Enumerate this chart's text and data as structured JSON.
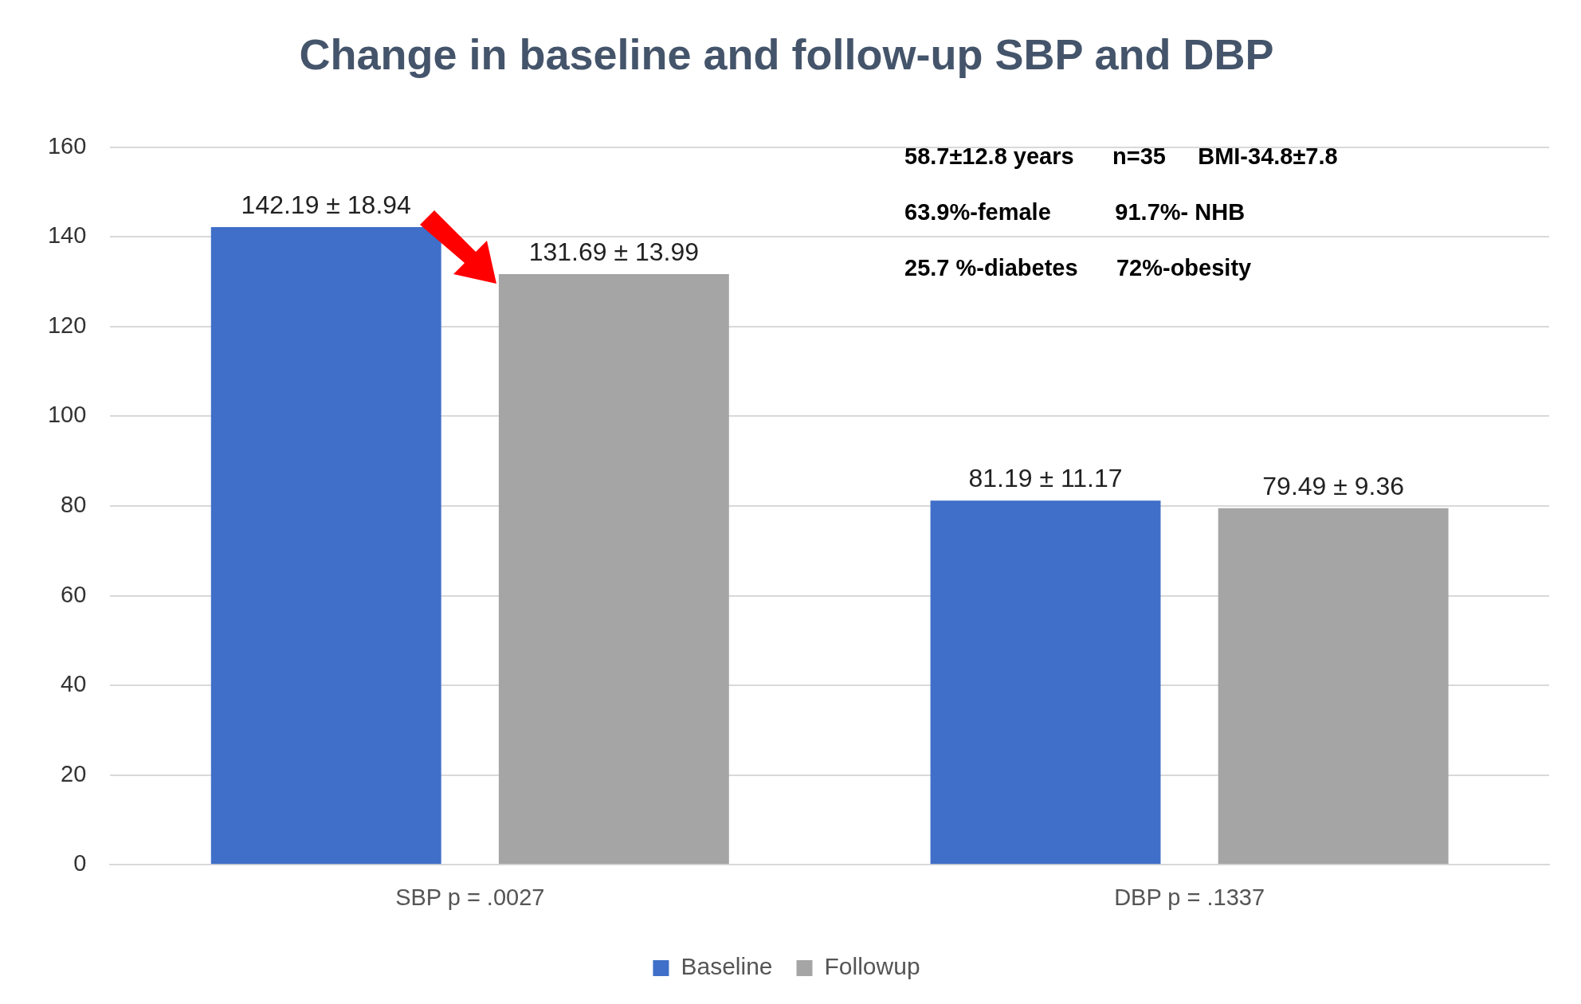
{
  "chart_data": {
    "type": "bar",
    "title": "Change in baseline and follow-up SBP and DBP",
    "categories": [
      "SBP p = .0027",
      "DBP p = .1337"
    ],
    "series": [
      {
        "name": "Baseline",
        "color": "#3f6fc8",
        "values": [
          142.19,
          81.19
        ],
        "value_labels": [
          "142.19 ± 18.94",
          "81.19 ± 11.17"
        ]
      },
      {
        "name": "Followup",
        "color": "#a5a5a5",
        "values": [
          131.69,
          79.49
        ],
        "value_labels": [
          "131.69 ± 13.99",
          "79.49 ± 9.36"
        ]
      }
    ],
    "ylim": [
      0,
      160
    ],
    "yticks": [
      0,
      20,
      40,
      60,
      80,
      100,
      120,
      140,
      160
    ],
    "grid": "y",
    "legend": "bottom",
    "annotations": [
      "58.7±12.8 years      n=35     BMI-34.8±7.8",
      "63.9%-female          91.7%- NHB",
      "25.7 %-diabetes      72%-obesity"
    ]
  }
}
